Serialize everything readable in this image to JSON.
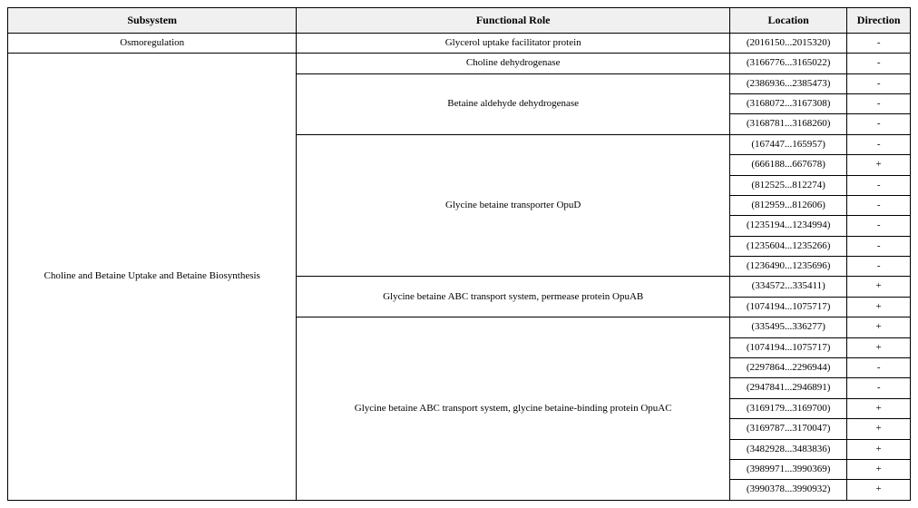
{
  "table": {
    "headers": {
      "subsystem": "Subsystem",
      "role": "Functional Role",
      "location": "Location",
      "direction": "Direction"
    },
    "subsystems": [
      {
        "name": "Osmoregulation",
        "roles": [
          {
            "name": "Glycerol uptake facilitator protein",
            "rows": [
              {
                "location": "(2016150...2015320)",
                "direction": "-"
              }
            ]
          }
        ]
      },
      {
        "name": "Choline and Betaine Uptake and Betaine Biosynthesis",
        "roles": [
          {
            "name": "Choline dehydrogenase",
            "rows": [
              {
                "location": "(3166776...3165022)",
                "direction": "-"
              }
            ]
          },
          {
            "name": "Betaine aldehyde dehydrogenase",
            "rows": [
              {
                "location": "(2386936...2385473)",
                "direction": "-"
              },
              {
                "location": "(3168072...3167308)",
                "direction": "-"
              },
              {
                "location": "(3168781...3168260)",
                "direction": "-"
              }
            ]
          },
          {
            "name": "Glycine betaine transporter OpuD",
            "rows": [
              {
                "location": "(167447...165957)",
                "direction": "-"
              },
              {
                "location": "(666188...667678)",
                "direction": "+"
              },
              {
                "location": "(812525...812274)",
                "direction": "-"
              },
              {
                "location": "(812959...812606)",
                "direction": "-"
              },
              {
                "location": "(1235194...1234994)",
                "direction": "-"
              },
              {
                "location": "(1235604...1235266)",
                "direction": "-"
              },
              {
                "location": "(1236490...1235696)",
                "direction": "-"
              }
            ]
          },
          {
            "name": "Glycine betaine ABC transport system, permease protein OpuAB",
            "rows": [
              {
                "location": "(334572...335411)",
                "direction": "+"
              },
              {
                "location": "(1074194...1075717)",
                "direction": "+"
              }
            ]
          },
          {
            "name": "Glycine betaine ABC transport system, glycine betaine-binding protein OpuAC",
            "rows": [
              {
                "location": "(335495...336277)",
                "direction": "+"
              },
              {
                "location": "(1074194...1075717)",
                "direction": "+"
              },
              {
                "location": "(2297864...2296944)",
                "direction": "-"
              },
              {
                "location": "(2947841...2946891)",
                "direction": "-"
              },
              {
                "location": "(3169179...3169700)",
                "direction": "+"
              },
              {
                "location": "(3169787...3170047)",
                "direction": "+"
              },
              {
                "location": "(3482928...3483836)",
                "direction": "+"
              },
              {
                "location": "(3989971...3990369)",
                "direction": "+"
              },
              {
                "location": "(3990378...3990932)",
                "direction": "+"
              }
            ]
          }
        ]
      }
    ]
  }
}
